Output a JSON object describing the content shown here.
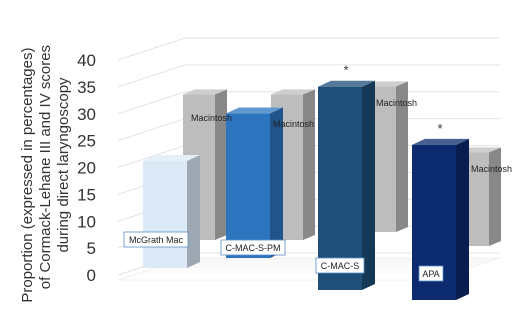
{
  "chart_data": {
    "type": "bar",
    "style": "3d-clustered",
    "ylabel_lines": [
      "Proportion (expressed in percentages)",
      "of Cormack-Lehane III and IV scores",
      "during direct laryngoscopy"
    ],
    "ylim": [
      0,
      40
    ],
    "yticks": [
      "0",
      "5",
      "10",
      "15",
      "20",
      "25",
      "30",
      "35",
      "40"
    ],
    "grid": true,
    "legend": "none",
    "groups": [
      {
        "front": {
          "label": "McGrath Mac",
          "value": 20,
          "color": "#dce9f7"
        },
        "back": {
          "label": "",
          "value": 28,
          "color": "#bdbdbd"
        },
        "significant": false
      },
      {
        "front": {
          "label": "C-MAC-S-PM",
          "value": 27,
          "color": "#2e75c0"
        },
        "back": {
          "label": "Macintosh",
          "value": 28,
          "color": "#bdbdbd"
        },
        "significant": false
      },
      {
        "front": {
          "label": "C-MAC-S",
          "value": 38,
          "color": "#1f4e79"
        },
        "back": {
          "label": "Macintosh",
          "value": 28,
          "color": "#bdbdbd"
        },
        "significant": true
      },
      {
        "front": {
          "label": "APA",
          "value": 29,
          "color": "#0c2a6e"
        },
        "back": {
          "label": "Macintosh",
          "value": 18,
          "color": "#bdbdbd"
        },
        "significant": true
      }
    ],
    "back_top_labels": [
      "Macintosh",
      "Macintosh",
      "Macintosh",
      "Macintosh"
    ],
    "significance_marker": "*"
  }
}
